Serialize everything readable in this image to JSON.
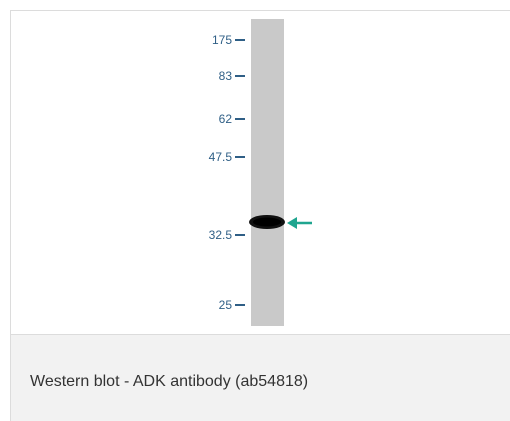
{
  "figure": {
    "markers": [
      {
        "label": "175",
        "kda": 175
      },
      {
        "label": "83",
        "kda": 83
      },
      {
        "label": "62",
        "kda": 62
      },
      {
        "label": "47.5",
        "kda": 47.5
      },
      {
        "label": "32.5",
        "kda": 32.5
      },
      {
        "label": "25",
        "kda": 25
      }
    ],
    "lane_color": "#c9c9c9",
    "band_color": "#111111",
    "arrow_color": "#1fa58f",
    "marker_color": "#2f5f86"
  },
  "caption": {
    "text": "Western blot - ADK antibody (ab54818)"
  }
}
